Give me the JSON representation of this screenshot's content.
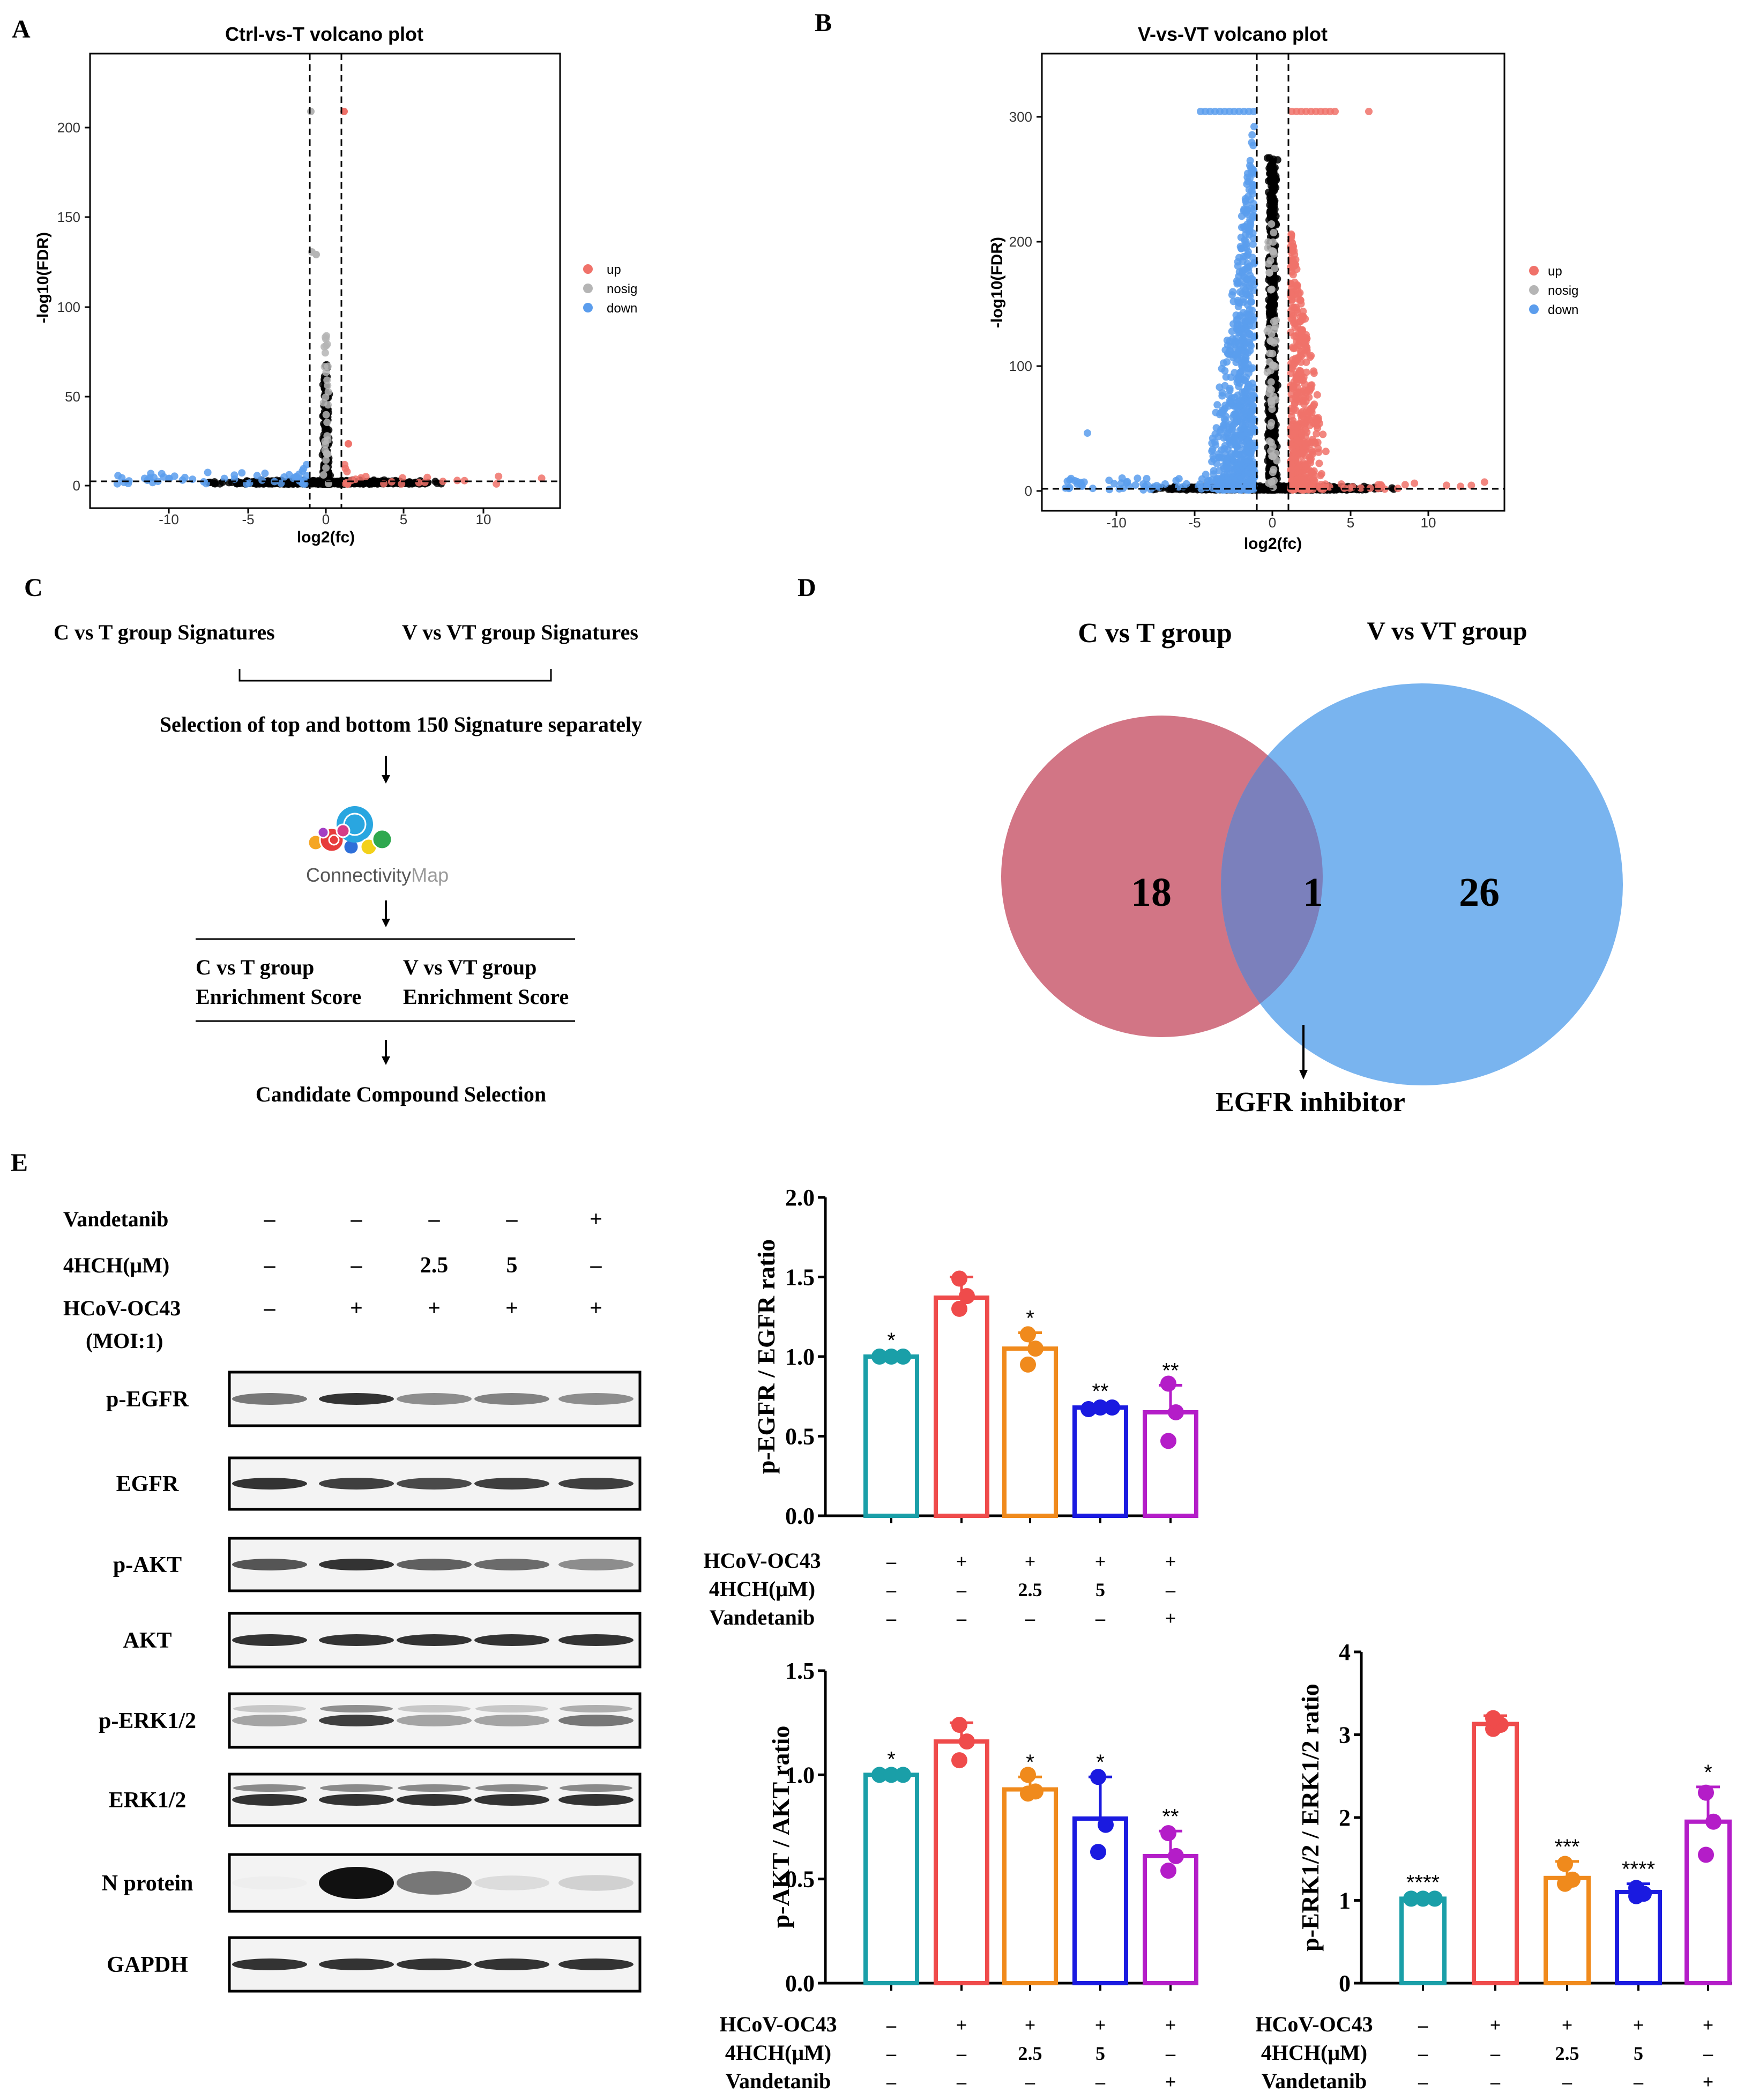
{
  "panels": {
    "A": "A",
    "B": "B",
    "C": "C",
    "D": "D",
    "E": "E"
  },
  "volcano_a": {
    "title": "Ctrl-vs-T volcano plot",
    "xlabel": "log2(fc)",
    "ylabel": "-log10(FDR)",
    "xticks": [
      "-10",
      "-5",
      "0",
      "5",
      "10"
    ],
    "yticks": [
      "0",
      "50",
      "100",
      "150",
      "200"
    ],
    "legend": [
      "up",
      "nosig",
      "down"
    ]
  },
  "volcano_b": {
    "title": "V-vs-VT volcano plot",
    "xlabel": "log2(fc)",
    "ylabel": "-log10(FDR)",
    "xticks": [
      "-10",
      "-5",
      "0",
      "5",
      "10"
    ],
    "yticks": [
      "0",
      "100",
      "200",
      "300"
    ],
    "legend": [
      "up",
      "nosig",
      "down"
    ]
  },
  "colors": {
    "up": "#f0726a",
    "nosig": "#b5b5b5",
    "down": "#5b9ded",
    "venn_left": "#d27585",
    "venn_right": "#79b4ef",
    "venn_mid": "#7b80bc"
  },
  "workflow": {
    "left_sig": "C vs T group Signatures",
    "right_sig": "V vs VT group Signatures",
    "selection": "Selection of top and bottom 150 Signature separately",
    "cmap_a": "Connectivity",
    "cmap_b": "Map",
    "left_es_1": "C vs T group",
    "left_es_2": "Enrichment Score",
    "right_es_1": "V vs VT group",
    "right_es_2": "Enrichment Score",
    "candidate": "Candidate Compound Selection"
  },
  "venn": {
    "left_label": "C vs T group",
    "right_label": "V vs VT group",
    "left_only": "18",
    "overlap": "1",
    "right_only": "26",
    "annotation": "EGFR inhibitor"
  },
  "blot": {
    "treat_rows": [
      {
        "label": "Vandetanib",
        "vals": [
          "–",
          "–",
          "–",
          "–",
          "+"
        ]
      },
      {
        "label": "4HCH(μM)",
        "vals": [
          "–",
          "–",
          "2.5",
          "5",
          "–"
        ]
      },
      {
        "label": "HCoV-OC43",
        "vals": [
          "–",
          "+",
          "+",
          "+",
          "+"
        ]
      }
    ],
    "moi": "(MOI:1)",
    "bands": [
      "p-EGFR",
      "EGFR",
      "p-AKT",
      "AKT",
      "p-ERK1/2",
      "ERK1/2",
      "N protein",
      "GAPDH"
    ]
  },
  "bar_condition_rows": [
    {
      "label": "HCoV-OC43",
      "vals": [
        "–",
        "+",
        "+",
        "+",
        "+"
      ]
    },
    {
      "label": "4HCH(μM)",
      "vals": [
        "–",
        "–",
        "2.5",
        "5",
        "–"
      ]
    },
    {
      "label": "Vandetanib",
      "vals": [
        "–",
        "–",
        "–",
        "–",
        "+"
      ]
    }
  ],
  "chart_data": [
    {
      "type": "bar",
      "ylabel": "p-EGFR / EGFR ratio",
      "ylim": [
        0,
        2.0
      ],
      "yticks": [
        "0.0",
        "0.5",
        "1.0",
        "1.5",
        "2.0"
      ],
      "series": [
        {
          "name": "ratio",
          "values": [
            1.0,
            1.37,
            1.05,
            0.68,
            0.65
          ],
          "errors": [
            0.01,
            0.13,
            0.1,
            0.01,
            0.17
          ],
          "points": [
            [
              1.0,
              1.0,
              1.0
            ],
            [
              1.3,
              1.38,
              1.49
            ],
            [
              0.95,
              1.05,
              1.14
            ],
            [
              0.67,
              0.68,
              0.68
            ],
            [
              0.47,
              0.65,
              0.83
            ]
          ],
          "significance": [
            "*",
            "",
            "*",
            "**",
            "**"
          ]
        }
      ]
    },
    {
      "type": "bar",
      "ylabel": "p-AKT / AKT ratio",
      "ylim": [
        0,
        1.5
      ],
      "yticks": [
        "0.0",
        "0.5",
        "1.0",
        "1.5"
      ],
      "series": [
        {
          "name": "ratio",
          "values": [
            1.0,
            1.16,
            0.93,
            0.79,
            0.61
          ],
          "errors": [
            0.005,
            0.09,
            0.06,
            0.2,
            0.12
          ],
          "points": [
            [
              1.0,
              1.0,
              1.0
            ],
            [
              1.07,
              1.16,
              1.24
            ],
            [
              0.91,
              0.92,
              1.0
            ],
            [
              0.63,
              0.76,
              0.99
            ],
            [
              0.54,
              0.61,
              0.72
            ]
          ],
          "significance": [
            "*",
            "",
            "*",
            "*",
            "**"
          ]
        }
      ]
    },
    {
      "type": "bar",
      "ylabel": "p-ERK1/2 / ERK1/2 ratio",
      "ylim": [
        0,
        4
      ],
      "yticks": [
        "0",
        "1",
        "2",
        "3",
        "4"
      ],
      "series": [
        {
          "name": "ratio",
          "values": [
            1.02,
            3.13,
            1.27,
            1.1,
            1.95
          ],
          "errors": [
            0.02,
            0.1,
            0.2,
            0.1,
            0.42
          ],
          "points": [
            [
              1.02,
              1.02,
              1.02
            ],
            [
              3.07,
              3.12,
              3.2
            ],
            [
              1.2,
              1.25,
              1.44
            ],
            [
              1.05,
              1.08,
              1.15
            ],
            [
              1.55,
              1.95,
              2.3
            ]
          ],
          "significance": [
            "****",
            "",
            "***",
            "****",
            "*"
          ]
        }
      ]
    }
  ]
}
